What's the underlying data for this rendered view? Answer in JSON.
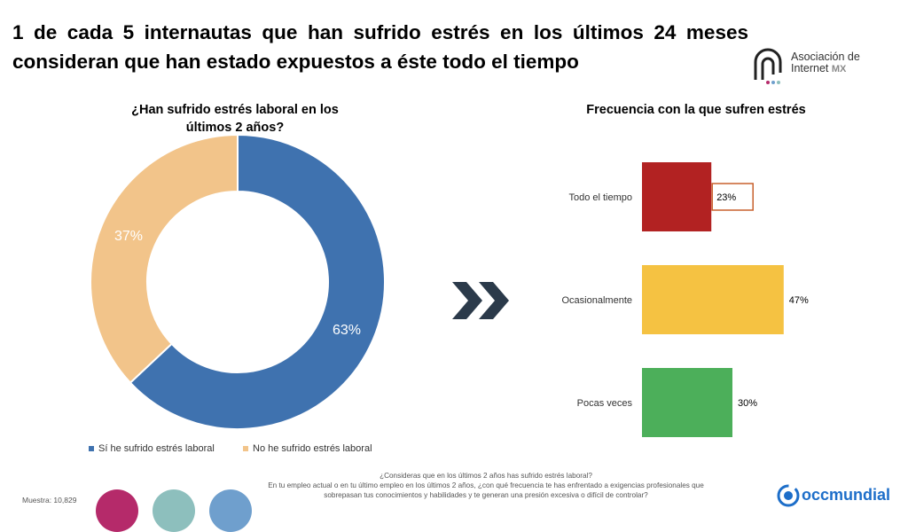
{
  "headline": "1 de cada 5 internautas que han sufrido estrés en los últimos 24 meses consideran que han estado expuestos a éste todo el tiempo",
  "logo": {
    "line1": "Asociación de",
    "line2": "Internet",
    "line3": "MX"
  },
  "colors": {
    "blue": "#3f72af",
    "peach": "#f2c48a",
    "red": "#b22222",
    "yellow": "#f5c242",
    "green": "#4caf5a",
    "orange_border": "#c8602d",
    "arrow": "#2b3a4a",
    "circle1": "#b52a6a",
    "circle2": "#8dbfbd",
    "circle3": "#6f9fcd"
  },
  "chart_data": [
    {
      "type": "pie",
      "title": "¿Han sufrido estrés laboral en los últimos 2 años?",
      "categories": [
        "Sí he sufrido estrés laboral",
        "No he sufrido estrés laboral"
      ],
      "values": [
        63,
        37
      ],
      "labels": [
        "63%",
        "37%"
      ],
      "colors": [
        "#3f72af",
        "#f2c48a"
      ],
      "legend": "bottom"
    },
    {
      "type": "bar",
      "title": "Frecuencia con la que sufren estrés",
      "categories": [
        "Todo el tiempo",
        "Ocasionalmente",
        "Pocas veces"
      ],
      "values": [
        23,
        47,
        30
      ],
      "labels": [
        "23%",
        "47%",
        "30%"
      ],
      "colors": [
        "#b22222",
        "#f5c242",
        "#4caf5a"
      ],
      "orientation": "horizontal"
    }
  ],
  "footer": {
    "line1": "¿Consideras que en los últimos 2 años has sufrido estrés laboral?",
    "line2": "En tu empleo actual o en tu último empleo en los últimos 2 años, ¿con qué frecuencia te has enfrentado a exigencias profesionales que sobrepasan tus conocimientos y habilidades y te generan una presión excesiva o difícil de controlar?",
    "sample": "Muestra: 10,829"
  },
  "brand": "occmundial"
}
